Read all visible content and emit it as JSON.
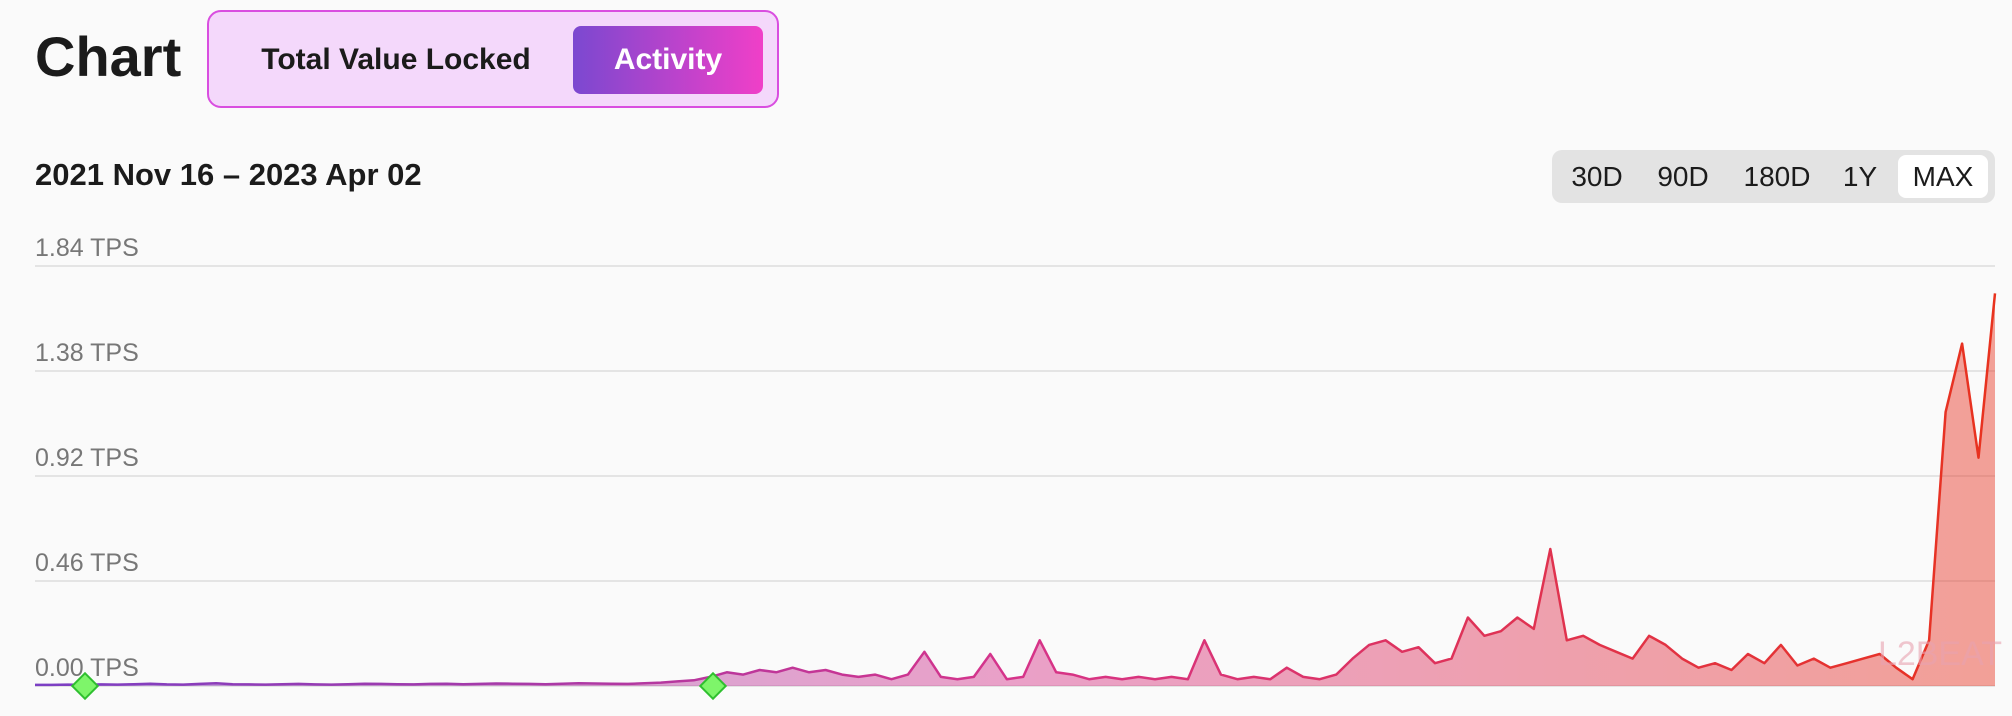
{
  "header": {
    "title": "Chart",
    "tabs": [
      "Total Value Locked",
      "Activity"
    ],
    "active_tab": 1
  },
  "date_range": "2021 Nov 16 – 2023 Apr 02",
  "ranges": [
    "30D",
    "90D",
    "180D",
    "1Y",
    "MAX"
  ],
  "active_range": 4,
  "watermark": "L2BEAT",
  "chart_data": {
    "type": "area",
    "colors": [
      "#7b3fc4",
      "#d6338a",
      "#e8321e"
    ],
    "ylim": [
      0,
      1.84
    ],
    "yticks": [
      {
        "value": 0,
        "label": "0.00 TPS"
      },
      {
        "value": 0.46,
        "label": "0.46 TPS"
      },
      {
        "value": 0.92,
        "label": "0.92 TPS"
      },
      {
        "value": 1.38,
        "label": "1.38 TPS"
      },
      {
        "value": 1.84,
        "label": "1.84 TPS"
      }
    ],
    "grid": true,
    "values": [
      0.005,
      0.005,
      0.006,
      0.005,
      0.007,
      0.006,
      0.008,
      0.01,
      0.007,
      0.006,
      0.009,
      0.012,
      0.008,
      0.007,
      0.006,
      0.008,
      0.009,
      0.007,
      0.006,
      0.008,
      0.01,
      0.009,
      0.008,
      0.007,
      0.009,
      0.01,
      0.008,
      0.009,
      0.011,
      0.01,
      0.009,
      0.008,
      0.01,
      0.012,
      0.011,
      0.01,
      0.009,
      0.012,
      0.015,
      0.02,
      0.025,
      0.04,
      0.06,
      0.05,
      0.07,
      0.06,
      0.08,
      0.06,
      0.07,
      0.05,
      0.04,
      0.05,
      0.03,
      0.05,
      0.15,
      0.04,
      0.03,
      0.04,
      0.14,
      0.03,
      0.04,
      0.2,
      0.06,
      0.05,
      0.03,
      0.04,
      0.03,
      0.04,
      0.03,
      0.04,
      0.03,
      0.2,
      0.05,
      0.03,
      0.04,
      0.03,
      0.08,
      0.04,
      0.03,
      0.05,
      0.12,
      0.18,
      0.2,
      0.15,
      0.17,
      0.1,
      0.12,
      0.3,
      0.22,
      0.24,
      0.3,
      0.25,
      0.6,
      0.2,
      0.22,
      0.18,
      0.15,
      0.12,
      0.22,
      0.18,
      0.12,
      0.08,
      0.1,
      0.07,
      0.14,
      0.1,
      0.18,
      0.09,
      0.12,
      0.08,
      0.1,
      0.12,
      0.14,
      0.08,
      0.03,
      0.2,
      1.2,
      1.5,
      1.0,
      1.72
    ]
  }
}
